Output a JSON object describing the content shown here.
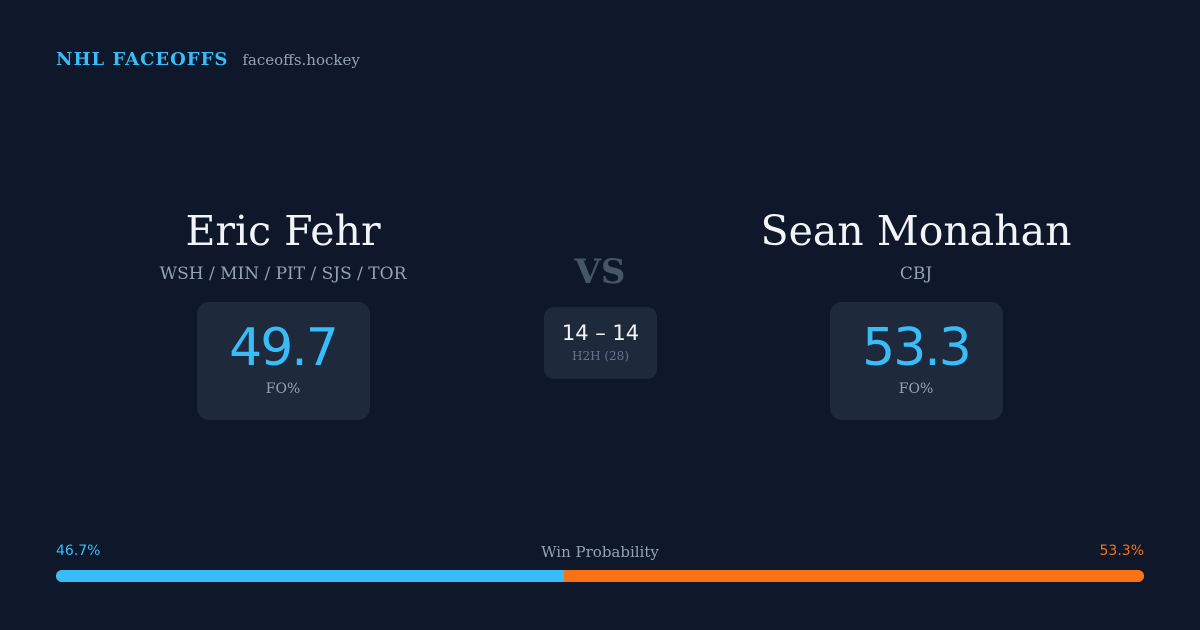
{
  "brand": {
    "title": "NHL FACEOFFS",
    "site": "faceoffs.hockey"
  },
  "player_left": {
    "name": "Eric Fehr",
    "teams": "WSH / MIN / PIT / SJS / TOR",
    "fo_pct": "49.7",
    "fo_label": "FO%"
  },
  "player_right": {
    "name": "Sean Monahan",
    "teams": "CBJ",
    "fo_pct": "53.3",
    "fo_label": "FO%"
  },
  "matchup": {
    "vs": "VS",
    "h2h_score": "14 – 14",
    "h2h_label": "H2H (28)"
  },
  "win_probability": {
    "title": "Win Probability",
    "left_label": "46.7%",
    "right_label": "53.3%",
    "left_value": 46.7,
    "right_value": 53.3,
    "left_color": "#38bdf8",
    "right_color": "#f97316"
  }
}
